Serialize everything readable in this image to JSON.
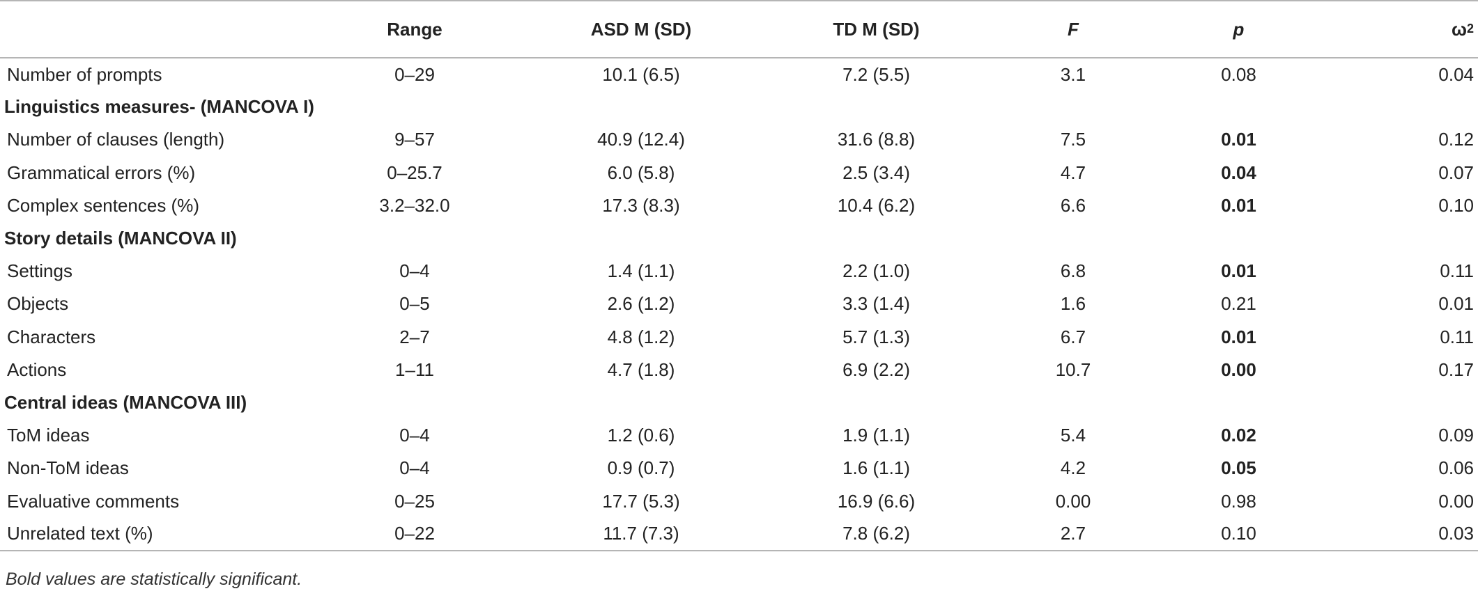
{
  "table": {
    "headers": [
      "",
      "Range",
      "ASD M (SD)",
      "TD M (SD)",
      "F",
      "p",
      "ω",
      "2"
    ],
    "rows": [
      {
        "type": "data",
        "label": "Number of prompts",
        "range": "0–29",
        "asd": "10.1 (6.5)",
        "td": "7.2 (5.5)",
        "f": "3.1",
        "p": "0.08",
        "p_bold": false,
        "omega2": "0.04"
      },
      {
        "type": "section",
        "label": "Linguistics measures- (MANCOVA I)"
      },
      {
        "type": "data",
        "label": "Number of clauses (length)",
        "range": "9–57",
        "asd": "40.9 (12.4)",
        "td": "31.6 (8.8)",
        "f": "7.5",
        "p": "0.01",
        "p_bold": true,
        "omega2": "0.12"
      },
      {
        "type": "data",
        "label": "Grammatical errors (%)",
        "range": "0–25.7",
        "asd": "6.0 (5.8)",
        "td": "2.5 (3.4)",
        "f": "4.7",
        "p": "0.04",
        "p_bold": true,
        "omega2": "0.07"
      },
      {
        "type": "data",
        "label": "Complex sentences (%)",
        "range": "3.2–32.0",
        "asd": "17.3 (8.3)",
        "td": "10.4 (6.2)",
        "f": "6.6",
        "p": "0.01",
        "p_bold": true,
        "omega2": "0.10"
      },
      {
        "type": "section",
        "label": "Story details (MANCOVA II)"
      },
      {
        "type": "data",
        "label": "Settings",
        "range": "0–4",
        "asd": "1.4 (1.1)",
        "td": "2.2 (1.0)",
        "f": "6.8",
        "p": "0.01",
        "p_bold": true,
        "omega2": "0.11"
      },
      {
        "type": "data",
        "label": "Objects",
        "range": "0–5",
        "asd": "2.6 (1.2)",
        "td": "3.3 (1.4)",
        "f": "1.6",
        "p": "0.21",
        "p_bold": false,
        "omega2": "0.01"
      },
      {
        "type": "data",
        "label": "Characters",
        "range": "2–7",
        "asd": "4.8 (1.2)",
        "td": "5.7 (1.3)",
        "f": "6.7",
        "p": "0.01",
        "p_bold": true,
        "omega2": "0.11"
      },
      {
        "type": "data",
        "label": "Actions",
        "range": "1–11",
        "asd": "4.7 (1.8)",
        "td": "6.9 (2.2)",
        "f": "10.7",
        "p": "0.00",
        "p_bold": true,
        "omega2": "0.17"
      },
      {
        "type": "section",
        "label": "Central ideas (MANCOVA III)"
      },
      {
        "type": "data",
        "label": "ToM ideas",
        "range": "0–4",
        "asd": "1.2 (0.6)",
        "td": "1.9 (1.1)",
        "f": "5.4",
        "p": "0.02",
        "p_bold": true,
        "omega2": "0.09"
      },
      {
        "type": "data",
        "label": "Non-ToM ideas",
        "range": "0–4",
        "asd": "0.9 (0.7)",
        "td": "1.6 (1.1)",
        "f": "4.2",
        "p": "0.05",
        "p_bold": true,
        "omega2": "0.06"
      },
      {
        "type": "data",
        "label": "Evaluative comments",
        "range": "0–25",
        "asd": "17.7 (5.3)",
        "td": "16.9 (6.6)",
        "f": "0.00",
        "p": "0.98",
        "p_bold": false,
        "omega2": "0.00"
      },
      {
        "type": "data",
        "label": "Unrelated text (%)",
        "range": "0–22",
        "asd": "11.7 (7.3)",
        "td": "7.8 (6.2)",
        "f": "2.7",
        "p": "0.10",
        "p_bold": false,
        "omega2": "0.03"
      }
    ],
    "note": "Bold values are statistically significant."
  }
}
